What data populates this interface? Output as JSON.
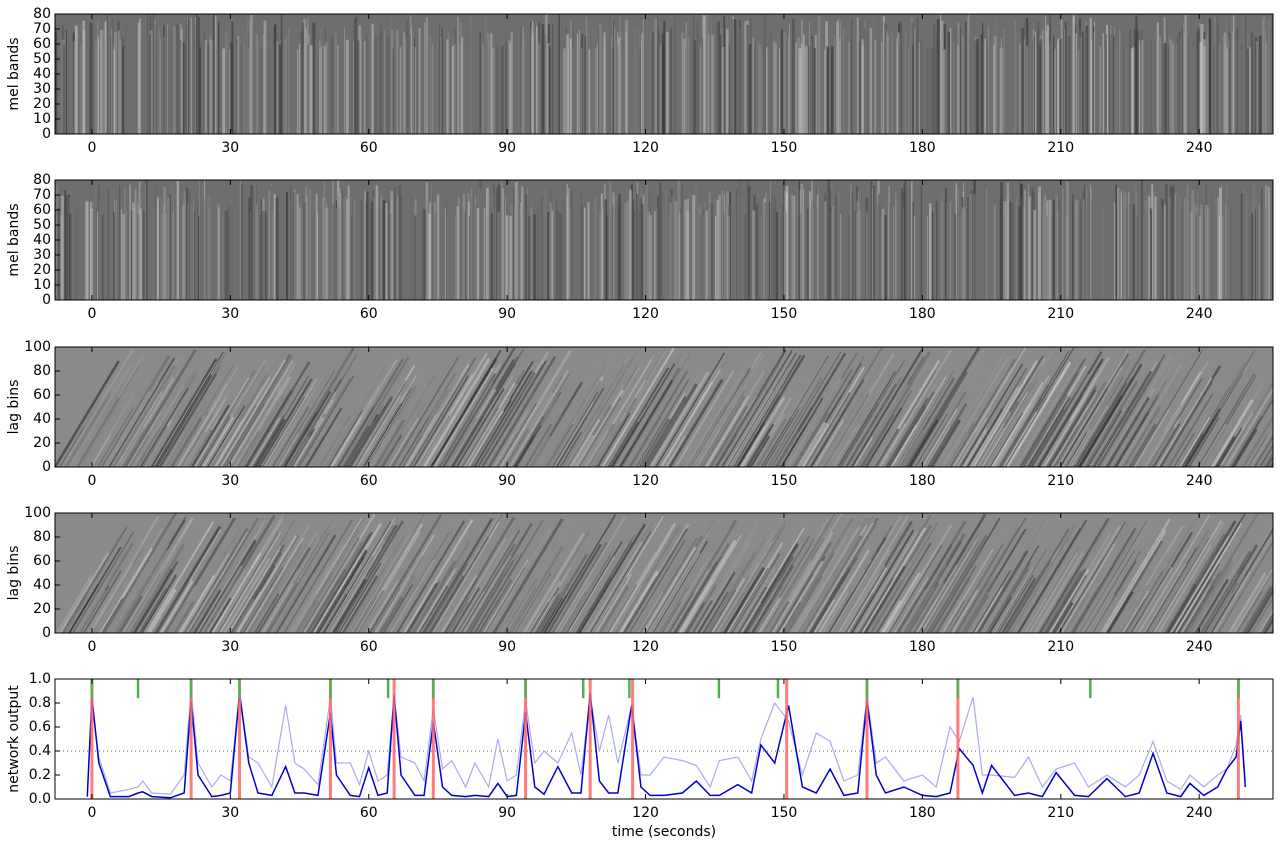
{
  "chart_data": [
    {
      "type": "image",
      "ylabel": "mel bands",
      "xlim": [
        -8,
        256
      ],
      "xticks": [
        0,
        30,
        60,
        90,
        120,
        150,
        180,
        210,
        240
      ],
      "ylim": [
        0,
        80
      ],
      "yticks": [
        0,
        10,
        20,
        30,
        40,
        50,
        60,
        70,
        80
      ]
    },
    {
      "type": "image",
      "ylabel": "mel bands",
      "xlim": [
        -8,
        256
      ],
      "xticks": [
        0,
        30,
        60,
        90,
        120,
        150,
        180,
        210,
        240
      ],
      "ylim": [
        0,
        80
      ],
      "yticks": [
        0,
        10,
        20,
        30,
        40,
        50,
        60,
        70,
        80
      ]
    },
    {
      "type": "image",
      "ylabel": "lag bins",
      "xlim": [
        -8,
        256
      ],
      "xticks": [
        0,
        30,
        60,
        90,
        120,
        150,
        180,
        210,
        240
      ],
      "ylim": [
        0,
        100
      ],
      "yticks": [
        0,
        20,
        40,
        60,
        80,
        100
      ]
    },
    {
      "type": "image",
      "ylabel": "lag bins",
      "xlim": [
        -8,
        256
      ],
      "xticks": [
        0,
        30,
        60,
        90,
        120,
        150,
        180,
        210,
        240
      ],
      "ylim": [
        0,
        100
      ],
      "yticks": [
        0,
        20,
        40,
        60,
        80,
        100
      ]
    },
    {
      "type": "line",
      "ylabel": "network output",
      "xlabel": "time (seconds)",
      "xlim": [
        -8,
        256
      ],
      "xticks": [
        0,
        30,
        60,
        90,
        120,
        150,
        180,
        210,
        240
      ],
      "ylim": [
        0,
        1
      ],
      "yticks": [
        {
          "value": 0,
          "label": "0.0"
        },
        {
          "value": 0.2,
          "label": "0.2"
        },
        {
          "value": 0.4,
          "label": "0.4"
        },
        {
          "value": 0.6,
          "label": "0.6"
        },
        {
          "value": 0.8,
          "label": "0.8"
        },
        {
          "value": 1,
          "label": "1.0"
        }
      ],
      "threshold": 0.4,
      "threshold_color": "#2e7d32",
      "x": [
        -1,
        0,
        1.5,
        4,
        8,
        10,
        11,
        13,
        17,
        20,
        21.5,
        23,
        26,
        28,
        30,
        32,
        34,
        36,
        39,
        42,
        44,
        46,
        49,
        51.7,
        53,
        56,
        58,
        60,
        62,
        64,
        65.5,
        67,
        70,
        72,
        74,
        76,
        78,
        81,
        83,
        86,
        88,
        90,
        92,
        94,
        96,
        98,
        101,
        104,
        106,
        108,
        110,
        112,
        114,
        117,
        119,
        121,
        124,
        128,
        131,
        134,
        136,
        140,
        143,
        145,
        148,
        151,
        154,
        157,
        160,
        163,
        166,
        168,
        170,
        172,
        176,
        180,
        183,
        186,
        188,
        191,
        193,
        195,
        200,
        203,
        206,
        209,
        213,
        216,
        220,
        224,
        227,
        230,
        233,
        236,
        238,
        241,
        244,
        246,
        248,
        249,
        250
      ],
      "series": [
        {
          "color": "#aaaaf0",
          "values": [
            0.05,
            0.8,
            0.35,
            0.05,
            0.08,
            0.1,
            0.15,
            0.05,
            0.04,
            0.2,
            0.9,
            0.3,
            0.1,
            0.2,
            0.15,
            0.88,
            0.35,
            0.3,
            0.1,
            0.78,
            0.3,
            0.25,
            0.12,
            0.85,
            0.3,
            0.3,
            0.12,
            0.4,
            0.15,
            0.2,
            0.85,
            0.35,
            0.3,
            0.15,
            0.75,
            0.25,
            0.32,
            0.1,
            0.3,
            0.1,
            0.5,
            0.15,
            0.2,
            0.82,
            0.3,
            0.4,
            0.3,
            0.55,
            0.2,
            0.85,
            0.4,
            0.7,
            0.3,
            0.78,
            0.2,
            0.2,
            0.35,
            0.32,
            0.28,
            0.1,
            0.32,
            0.35,
            0.15,
            0.5,
            0.8,
            0.65,
            0.2,
            0.55,
            0.48,
            0.15,
            0.2,
            0.85,
            0.3,
            0.35,
            0.15,
            0.2,
            0.1,
            0.6,
            0.48,
            0.85,
            0.2,
            0.2,
            0.18,
            0.35,
            0.1,
            0.25,
            0.3,
            0.1,
            0.2,
            0.1,
            0.2,
            0.48,
            0.15,
            0.08,
            0.2,
            0.1,
            0.2,
            0.25,
            0.45,
            0.7,
            0.15
          ]
        },
        {
          "color": "#0000cc",
          "values": [
            0.02,
            0.85,
            0.3,
            0.02,
            0.02,
            0.05,
            0.06,
            0.02,
            0.01,
            0.05,
            0.82,
            0.2,
            0.02,
            0.03,
            0.05,
            0.88,
            0.3,
            0.05,
            0.03,
            0.27,
            0.05,
            0.05,
            0.03,
            0.72,
            0.2,
            0.03,
            0.02,
            0.26,
            0.03,
            0.05,
            0.87,
            0.2,
            0.03,
            0.03,
            0.64,
            0.1,
            0.03,
            0.02,
            0.03,
            0.02,
            0.13,
            0.02,
            0.03,
            0.72,
            0.1,
            0.04,
            0.27,
            0.05,
            0.05,
            0.88,
            0.15,
            0.05,
            0.05,
            0.78,
            0.1,
            0.03,
            0.03,
            0.05,
            0.15,
            0.03,
            0.03,
            0.12,
            0.05,
            0.45,
            0.3,
            0.78,
            0.1,
            0.05,
            0.25,
            0.03,
            0.05,
            0.83,
            0.2,
            0.05,
            0.1,
            0.03,
            0.02,
            0.05,
            0.42,
            0.28,
            0.05,
            0.28,
            0.03,
            0.05,
            0.02,
            0.22,
            0.03,
            0.02,
            0.17,
            0.02,
            0.05,
            0.38,
            0.05,
            0.02,
            0.13,
            0.03,
            0.1,
            0.25,
            0.35,
            0.65,
            0.1
          ]
        }
      ],
      "red_lines": {
        "color": "#ff6666",
        "x": [
          0,
          21.5,
          32,
          51.7,
          65.5,
          74,
          94,
          108,
          117.2,
          150.6,
          168,
          187.7,
          248.5
        ]
      },
      "green_marks": {
        "color": "#55b055",
        "x": [
          0,
          10,
          21.5,
          32,
          51.7,
          64.2,
          74,
          94,
          106.5,
          116.5,
          135.9,
          148.7,
          168,
          187.7,
          216.4,
          248.5
        ],
        "y0": 0.84
      }
    }
  ]
}
